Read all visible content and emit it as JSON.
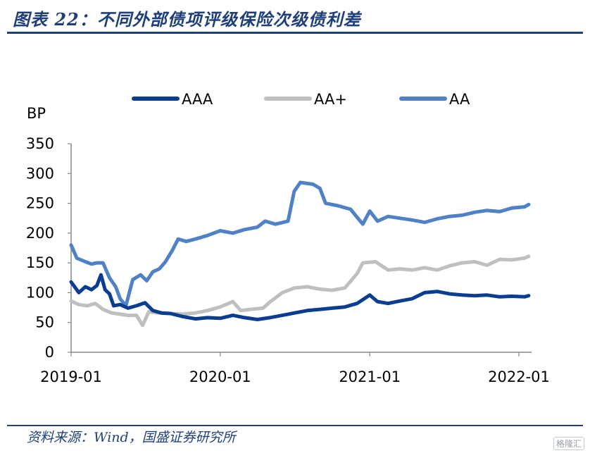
{
  "header": {
    "title": "图表 22：不同外部债项评级保险次级债利差"
  },
  "footer": {
    "source": "资料来源：Wind，国盛证券研究所",
    "watermark": "格隆汇"
  },
  "chart_data": {
    "type": "line",
    "ylabel": "BP",
    "ylim": [
      0,
      350
    ],
    "yticks": [
      0,
      50,
      100,
      150,
      200,
      250,
      300,
      350
    ],
    "xlim": [
      "2019-01-01",
      "2022-02-01"
    ],
    "xticks": [
      "2019-01",
      "2020-01",
      "2021-01",
      "2022-01"
    ],
    "legend_position": "top",
    "grid": false,
    "series": [
      {
        "name": "AAA",
        "color": "#0a3d91",
        "points": [
          [
            "2019-01-01",
            118
          ],
          [
            "2019-01-20",
            100
          ],
          [
            "2019-02-05",
            110
          ],
          [
            "2019-02-20",
            105
          ],
          [
            "2019-03-05",
            112
          ],
          [
            "2019-03-15",
            130
          ],
          [
            "2019-03-25",
            105
          ],
          [
            "2019-04-05",
            98
          ],
          [
            "2019-04-15",
            78
          ],
          [
            "2019-05-01",
            80
          ],
          [
            "2019-05-20",
            74
          ],
          [
            "2019-06-10",
            78
          ],
          [
            "2019-07-01",
            83
          ],
          [
            "2019-07-20",
            70
          ],
          [
            "2019-08-10",
            66
          ],
          [
            "2019-09-01",
            65
          ],
          [
            "2019-10-01",
            60
          ],
          [
            "2019-11-01",
            56
          ],
          [
            "2019-12-01",
            58
          ],
          [
            "2020-01-01",
            57
          ],
          [
            "2020-02-01",
            62
          ],
          [
            "2020-03-01",
            58
          ],
          [
            "2020-04-01",
            55
          ],
          [
            "2020-05-01",
            58
          ],
          [
            "2020-06-01",
            62
          ],
          [
            "2020-07-01",
            66
          ],
          [
            "2020-08-01",
            70
          ],
          [
            "2020-09-01",
            72
          ],
          [
            "2020-10-01",
            74
          ],
          [
            "2020-11-01",
            76
          ],
          [
            "2020-12-01",
            82
          ],
          [
            "2021-01-01",
            96
          ],
          [
            "2021-01-20",
            85
          ],
          [
            "2021-02-15",
            82
          ],
          [
            "2021-03-15",
            86
          ],
          [
            "2021-04-15",
            90
          ],
          [
            "2021-05-15",
            100
          ],
          [
            "2021-06-15",
            102
          ],
          [
            "2021-07-15",
            98
          ],
          [
            "2021-08-15",
            96
          ],
          [
            "2021-09-15",
            95
          ],
          [
            "2021-10-15",
            96
          ],
          [
            "2021-11-15",
            93
          ],
          [
            "2021-12-15",
            94
          ],
          [
            "2022-01-15",
            93
          ],
          [
            "2022-01-25",
            95
          ]
        ]
      },
      {
        "name": "AA+",
        "color": "#bfbfbf",
        "points": [
          [
            "2019-01-01",
            86
          ],
          [
            "2019-01-20",
            80
          ],
          [
            "2019-02-10",
            78
          ],
          [
            "2019-03-01",
            82
          ],
          [
            "2019-03-20",
            72
          ],
          [
            "2019-04-10",
            66
          ],
          [
            "2019-05-01",
            64
          ],
          [
            "2019-05-20",
            62
          ],
          [
            "2019-06-10",
            62
          ],
          [
            "2019-06-25",
            45
          ],
          [
            "2019-07-10",
            68
          ],
          [
            "2019-08-01",
            66
          ],
          [
            "2019-09-01",
            65
          ],
          [
            "2019-10-01",
            64
          ],
          [
            "2019-11-01",
            66
          ],
          [
            "2019-12-01",
            70
          ],
          [
            "2020-01-01",
            76
          ],
          [
            "2020-02-01",
            85
          ],
          [
            "2020-02-20",
            70
          ],
          [
            "2020-03-15",
            72
          ],
          [
            "2020-04-15",
            74
          ],
          [
            "2020-05-01",
            84
          ],
          [
            "2020-06-01",
            100
          ],
          [
            "2020-07-01",
            108
          ],
          [
            "2020-08-01",
            110
          ],
          [
            "2020-09-01",
            106
          ],
          [
            "2020-10-01",
            104
          ],
          [
            "2020-11-01",
            108
          ],
          [
            "2020-12-01",
            132
          ],
          [
            "2020-12-15",
            150
          ],
          [
            "2021-01-15",
            152
          ],
          [
            "2021-02-15",
            138
          ],
          [
            "2021-03-15",
            140
          ],
          [
            "2021-04-15",
            138
          ],
          [
            "2021-05-15",
            142
          ],
          [
            "2021-06-15",
            138
          ],
          [
            "2021-07-15",
            145
          ],
          [
            "2021-08-15",
            150
          ],
          [
            "2021-09-15",
            152
          ],
          [
            "2021-10-15",
            146
          ],
          [
            "2021-11-15",
            156
          ],
          [
            "2021-12-15",
            155
          ],
          [
            "2022-01-15",
            158
          ],
          [
            "2022-01-25",
            161
          ]
        ]
      },
      {
        "name": "AA",
        "color": "#4f81c7",
        "points": [
          [
            "2019-01-01",
            180
          ],
          [
            "2019-01-15",
            158
          ],
          [
            "2019-02-05",
            152
          ],
          [
            "2019-02-20",
            148
          ],
          [
            "2019-03-05",
            150
          ],
          [
            "2019-03-20",
            150
          ],
          [
            "2019-04-05",
            125
          ],
          [
            "2019-04-20",
            110
          ],
          [
            "2019-05-01",
            90
          ],
          [
            "2019-05-15",
            78
          ],
          [
            "2019-06-01",
            122
          ],
          [
            "2019-06-20",
            130
          ],
          [
            "2019-07-05",
            120
          ],
          [
            "2019-07-20",
            135
          ],
          [
            "2019-08-05",
            140
          ],
          [
            "2019-08-20",
            152
          ],
          [
            "2019-09-05",
            170
          ],
          [
            "2019-09-20",
            190
          ],
          [
            "2019-10-10",
            186
          ],
          [
            "2019-11-01",
            190
          ],
          [
            "2019-12-01",
            196
          ],
          [
            "2020-01-01",
            204
          ],
          [
            "2020-02-01",
            200
          ],
          [
            "2020-03-01",
            206
          ],
          [
            "2020-04-01",
            210
          ],
          [
            "2020-04-20",
            220
          ],
          [
            "2020-05-15",
            215
          ],
          [
            "2020-06-15",
            220
          ],
          [
            "2020-06-30",
            270
          ],
          [
            "2020-07-15",
            285
          ],
          [
            "2020-08-15",
            282
          ],
          [
            "2020-09-01",
            275
          ],
          [
            "2020-09-15",
            250
          ],
          [
            "2020-10-15",
            246
          ],
          [
            "2020-11-15",
            240
          ],
          [
            "2020-12-15",
            215
          ],
          [
            "2021-01-01",
            237
          ],
          [
            "2021-01-20",
            220
          ],
          [
            "2021-02-15",
            228
          ],
          [
            "2021-03-15",
            225
          ],
          [
            "2021-04-15",
            222
          ],
          [
            "2021-05-15",
            218
          ],
          [
            "2021-06-15",
            224
          ],
          [
            "2021-07-15",
            228
          ],
          [
            "2021-08-15",
            230
          ],
          [
            "2021-09-15",
            235
          ],
          [
            "2021-10-15",
            238
          ],
          [
            "2021-11-15",
            236
          ],
          [
            "2021-12-15",
            242
          ],
          [
            "2022-01-15",
            244
          ],
          [
            "2022-01-25",
            248
          ]
        ]
      }
    ]
  }
}
